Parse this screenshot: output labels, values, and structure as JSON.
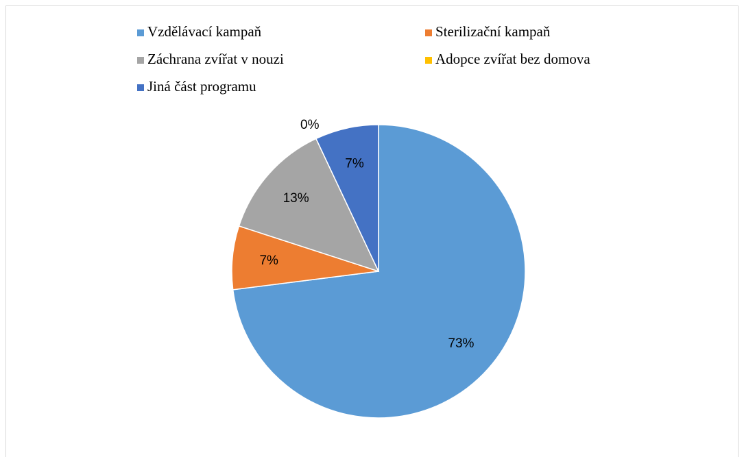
{
  "chart_data": {
    "type": "pie",
    "categories": [
      "Vzdělávací kampaň",
      "Sterilizační kampaň",
      "Záchrana zvířat v nouzi",
      "Adopce zvířat bez domova",
      "Jiná část programu"
    ],
    "values": [
      73,
      7,
      13,
      0,
      7
    ],
    "value_labels": [
      "73%",
      "7%",
      "13%",
      "0%",
      "7%"
    ],
    "colors": [
      "#5b9bd5",
      "#ed7d31",
      "#a5a5a5",
      "#ffc000",
      "#4472c4"
    ],
    "legend": "top"
  }
}
